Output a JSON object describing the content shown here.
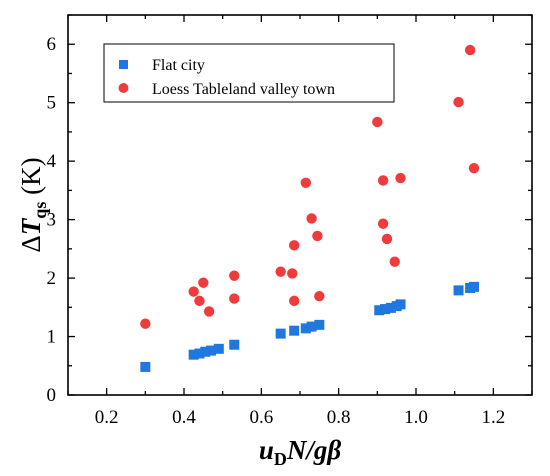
{
  "chart_data": {
    "type": "scatter",
    "xlim": [
      0.1,
      1.3
    ],
    "ylim": [
      0,
      6.5
    ],
    "x_ticks": [
      "0.2",
      "0.4",
      "0.6",
      "0.8",
      "1.0",
      "1.2"
    ],
    "y_ticks": [
      "0",
      "1",
      "2",
      "3",
      "4",
      "5",
      "6"
    ],
    "ylabel": {
      "prefix": "Δ",
      "main": "T",
      "sub": "qs",
      "suffix": " (K)"
    },
    "xlabel": {
      "a": "u",
      "a_sub": "D",
      "b": "N/gβ"
    },
    "legend_position": "top-left",
    "grid": false,
    "series": [
      {
        "name": "Flat city",
        "marker": "square",
        "color": "#1f77e0",
        "points": [
          [
            0.3,
            0.48
          ],
          [
            0.425,
            0.69
          ],
          [
            0.44,
            0.71
          ],
          [
            0.455,
            0.74
          ],
          [
            0.47,
            0.76
          ],
          [
            0.49,
            0.79
          ],
          [
            0.53,
            0.86
          ],
          [
            0.65,
            1.05
          ],
          [
            0.685,
            1.1
          ],
          [
            0.715,
            1.14
          ],
          [
            0.73,
            1.17
          ],
          [
            0.75,
            1.2
          ],
          [
            0.905,
            1.45
          ],
          [
            0.92,
            1.47
          ],
          [
            0.935,
            1.49
          ],
          [
            0.95,
            1.52
          ],
          [
            0.96,
            1.55
          ],
          [
            1.11,
            1.79
          ],
          [
            1.14,
            1.83
          ],
          [
            1.15,
            1.85
          ]
        ]
      },
      {
        "name": "Loess Tableland valley town",
        "marker": "circle",
        "color": "#ef3b3b",
        "points": [
          [
            0.3,
            1.22
          ],
          [
            0.425,
            1.77
          ],
          [
            0.44,
            1.61
          ],
          [
            0.45,
            1.92
          ],
          [
            0.465,
            1.43
          ],
          [
            0.53,
            2.04
          ],
          [
            0.53,
            1.65
          ],
          [
            0.65,
            2.11
          ],
          [
            0.68,
            2.08
          ],
          [
            0.685,
            1.61
          ],
          [
            0.685,
            2.56
          ],
          [
            0.715,
            3.63
          ],
          [
            0.73,
            3.02
          ],
          [
            0.745,
            2.72
          ],
          [
            0.75,
            1.69
          ],
          [
            0.9,
            4.67
          ],
          [
            0.915,
            3.67
          ],
          [
            0.915,
            2.93
          ],
          [
            0.925,
            2.67
          ],
          [
            0.945,
            2.28
          ],
          [
            0.96,
            3.71
          ],
          [
            1.11,
            5.01
          ],
          [
            1.14,
            5.9
          ],
          [
            1.15,
            3.88
          ]
        ]
      }
    ]
  }
}
